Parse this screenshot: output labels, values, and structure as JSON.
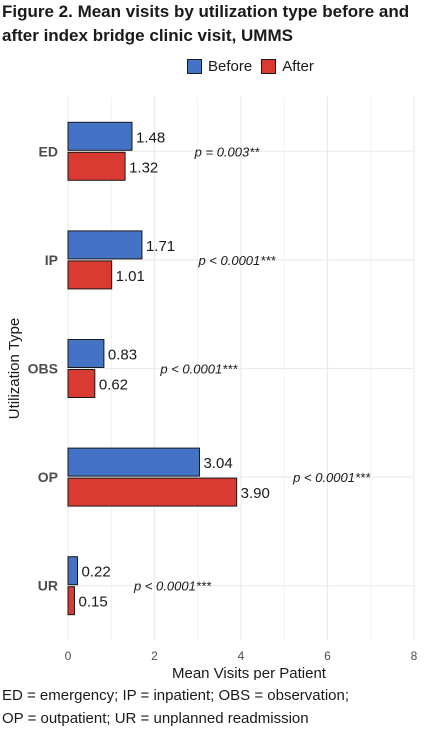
{
  "title_line1": "Figure 2. Mean visits by utilization type before and",
  "title_line2": "after index bridge clinic visit, UMMS",
  "footnote_line1": "ED = emergency; IP = inpatient; OBS = observation;",
  "footnote_line2": "OP = outpatient; UR = unplanned readmission",
  "colors": {
    "before": "#4472c4",
    "after": "#d93a32",
    "grid": "#ebebeb"
  },
  "chart_data": {
    "type": "bar",
    "orientation": "horizontal",
    "categories": [
      "ED",
      "IP",
      "OBS",
      "OP",
      "UR"
    ],
    "series": [
      {
        "name": "Before",
        "values": [
          1.48,
          1.71,
          0.83,
          3.04,
          0.22
        ],
        "labels": [
          "1.48",
          "1.71",
          "0.83",
          "3.04",
          "0.22"
        ]
      },
      {
        "name": "After",
        "values": [
          1.32,
          1.01,
          0.62,
          3.9,
          0.15
        ],
        "labels": [
          "1.32",
          "1.01",
          "0.62",
          "3.90",
          "0.15"
        ]
      }
    ],
    "annotations": [
      "p = 0.003**",
      "p < 0.0001***",
      "p < 0.0001***",
      "p < 0.0001***",
      "p < 0.0001***"
    ],
    "xlabel": "Mean Visits per Patient",
    "ylabel": "Utilization Type",
    "xlim": [
      0,
      8
    ],
    "xticks": [
      "0",
      "2",
      "4",
      "6",
      "8"
    ],
    "grid": true,
    "legend_position": "top"
  }
}
